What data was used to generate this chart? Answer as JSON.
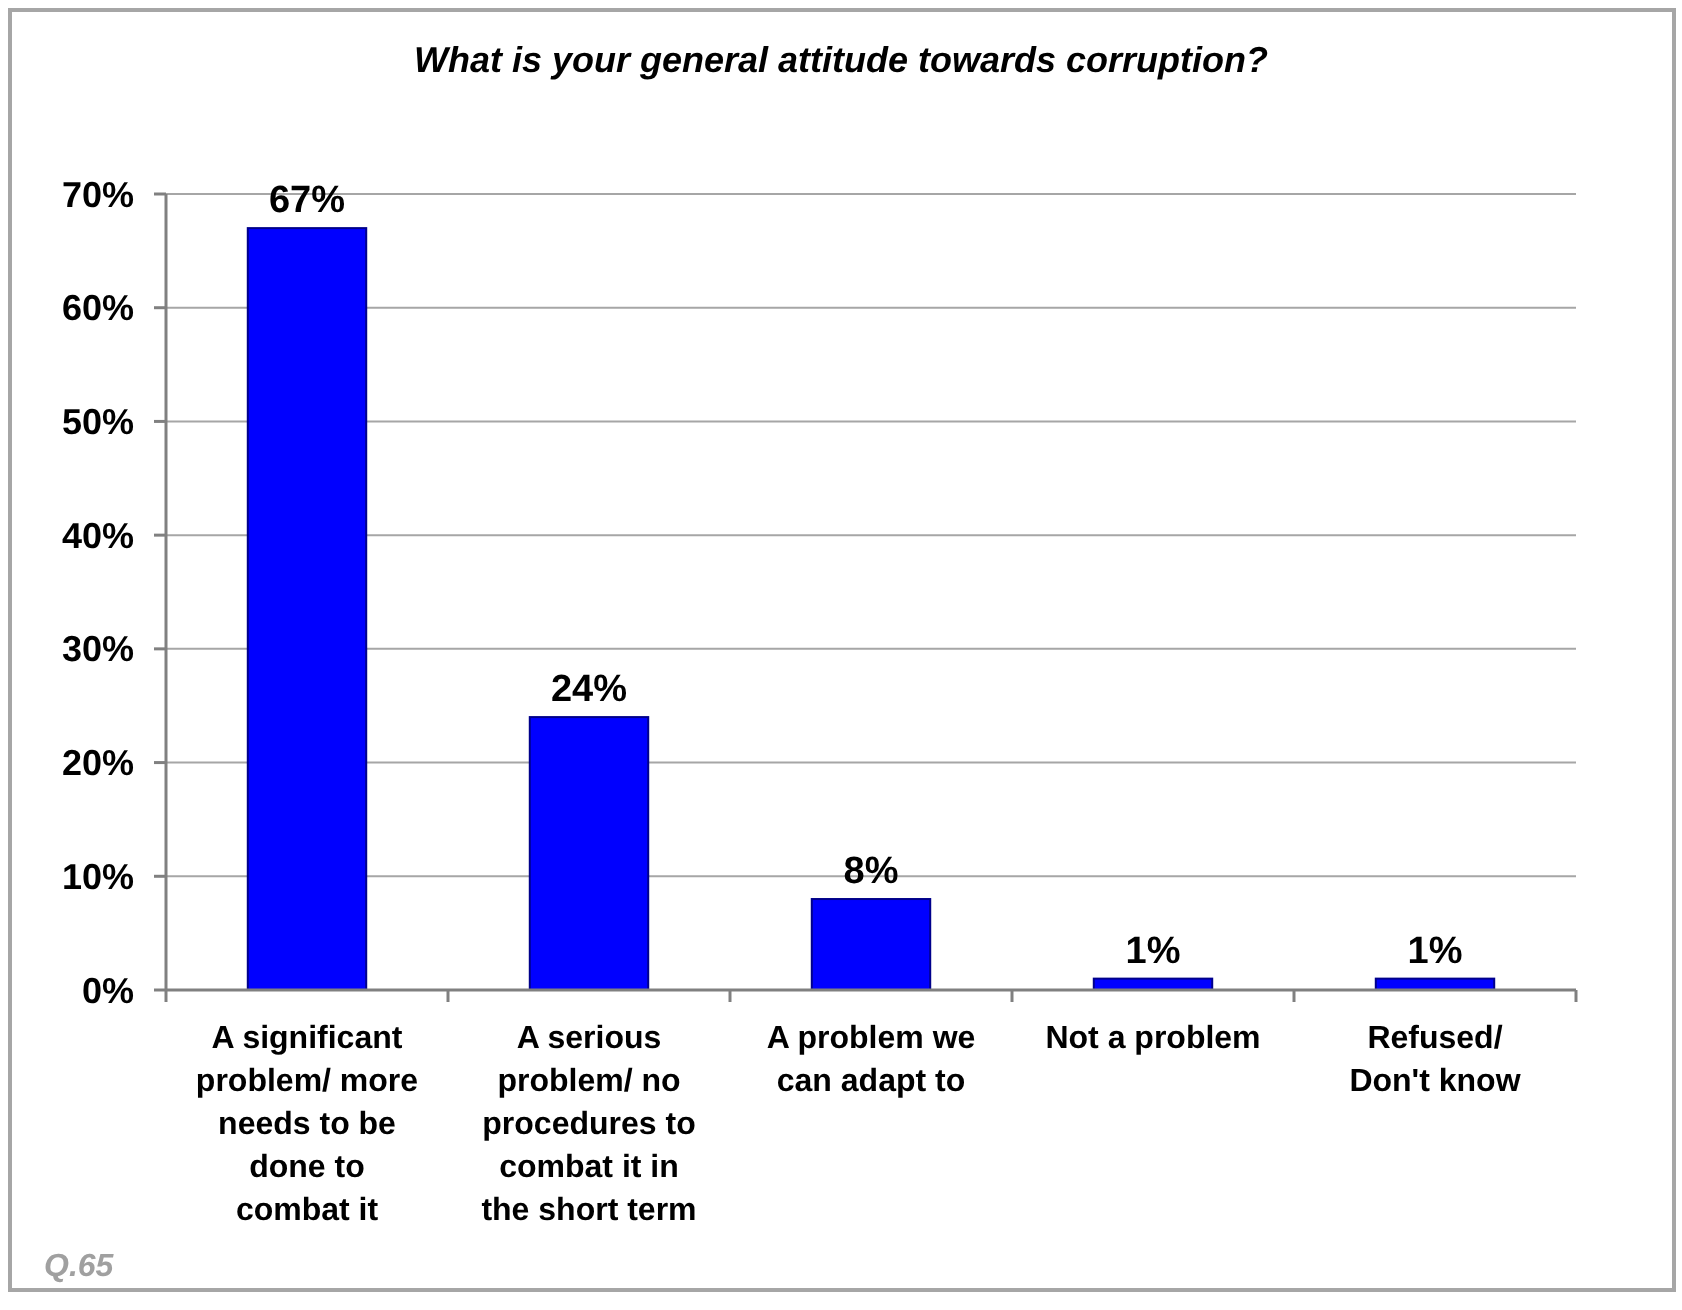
{
  "chart_data": {
    "type": "bar",
    "title": "What is your general attitude towards corruption?",
    "categories": [
      "A significant problem/ more needs to be done to combat it",
      "A serious problem/ no procedures to combat it in the short term",
      "A problem we can adapt to",
      "Not a problem",
      "Refused/ Don't know"
    ],
    "values": [
      67,
      24,
      8,
      1,
      1
    ],
    "color": "#0000ff",
    "value_labels": [
      "67%",
      "24%",
      "8%",
      "1%",
      "1%"
    ],
    "ylim": [
      0,
      70
    ],
    "yticks": [
      {
        "value": 0,
        "label": "0%"
      },
      {
        "value": 10,
        "label": "10%"
      },
      {
        "value": 20,
        "label": "20%"
      },
      {
        "value": 30,
        "label": "30%"
      },
      {
        "value": 40,
        "label": "40%"
      },
      {
        "value": 50,
        "label": "50%"
      },
      {
        "value": 60,
        "label": "60%"
      },
      {
        "value": 70,
        "label": "70%"
      }
    ],
    "grid": "y",
    "annotations": [
      "Q.65"
    ]
  }
}
